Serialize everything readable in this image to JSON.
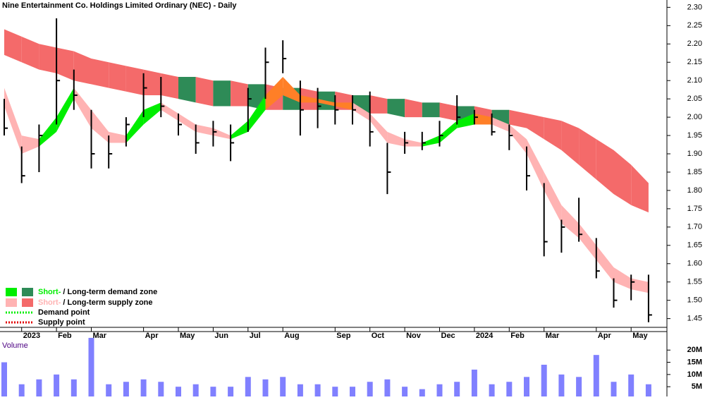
{
  "chart_data": {
    "type": "stock",
    "title": "Nine Entertainment Co. Holdings Limited Ordinary (NEC) - Daily",
    "categories": [
      null,
      "2023",
      null,
      "Feb",
      null,
      "Mar",
      null,
      null,
      "Apr",
      null,
      "May",
      null,
      "Jun",
      null,
      "Jul",
      null,
      "Aug",
      null,
      null,
      "Sep",
      null,
      "Oct",
      null,
      "Nov",
      null,
      "Dec",
      null,
      "2024",
      null,
      "Feb",
      null,
      "Mar",
      null,
      null,
      "Apr",
      null,
      "May",
      null
    ],
    "high": [
      2.05,
      1.92,
      1.98,
      2.27,
      2.13,
      2.02,
      1.95,
      2.0,
      2.12,
      2.11,
      2.01,
      1.98,
      1.99,
      1.98,
      2.08,
      2.19,
      2.21,
      2.1,
      2.08,
      2.06,
      2.06,
      2.07,
      1.93,
      1.96,
      1.96,
      1.99,
      2.06,
      2.02,
      2.01,
      1.98,
      1.92,
      1.82,
      1.72,
      1.78,
      1.67,
      1.56,
      1.57,
      1.57
    ],
    "low": [
      1.95,
      1.82,
      1.85,
      1.98,
      2.02,
      1.86,
      1.86,
      1.92,
      2.0,
      2.0,
      1.95,
      1.9,
      1.92,
      1.88,
      1.96,
      2.05,
      2.12,
      1.95,
      1.97,
      1.98,
      1.98,
      1.92,
      1.79,
      1.9,
      1.91,
      1.92,
      1.98,
      1.98,
      1.95,
      1.91,
      1.8,
      1.62,
      1.63,
      1.66,
      1.56,
      1.48,
      1.5,
      1.44
    ],
    "close": [
      1.97,
      1.84,
      1.95,
      2.1,
      2.06,
      1.9,
      1.9,
      1.98,
      2.08,
      2.03,
      1.98,
      1.93,
      1.96,
      1.93,
      2.05,
      2.15,
      2.16,
      2.02,
      2.03,
      2.02,
      2.02,
      1.96,
      1.85,
      1.93,
      1.93,
      1.95,
      2.0,
      2.0,
      1.96,
      1.95,
      1.84,
      1.66,
      1.7,
      1.68,
      1.58,
      1.5,
      1.55,
      1.46
    ],
    "short_upper": [
      2.08,
      1.95,
      1.94,
      2.0,
      2.08,
      2.02,
      1.96,
      1.95,
      2.02,
      2.04,
      2.01,
      1.98,
      1.97,
      1.95,
      1.99,
      2.06,
      2.11,
      2.06,
      2.05,
      2.04,
      2.04,
      2.01,
      1.96,
      1.94,
      1.93,
      1.95,
      1.99,
      2.01,
      2.0,
      1.98,
      1.94,
      1.85,
      1.76,
      1.71,
      1.65,
      1.59,
      1.56,
      1.55
    ],
    "short_lower": [
      2.03,
      1.9,
      1.92,
      1.96,
      2.05,
      1.97,
      1.93,
      1.93,
      1.98,
      2.02,
      1.99,
      1.96,
      1.95,
      1.94,
      1.96,
      2.02,
      2.06,
      2.04,
      2.04,
      2.03,
      2.02,
      1.99,
      1.93,
      1.92,
      1.92,
      1.93,
      1.97,
      1.98,
      1.98,
      1.96,
      1.9,
      1.8,
      1.71,
      1.67,
      1.61,
      1.55,
      1.53,
      1.52
    ],
    "long_upper": [
      2.24,
      2.22,
      2.2,
      2.19,
      2.18,
      2.16,
      2.15,
      2.14,
      2.13,
      2.12,
      2.11,
      2.11,
      2.1,
      2.1,
      2.09,
      2.09,
      2.08,
      2.08,
      2.07,
      2.07,
      2.06,
      2.06,
      2.05,
      2.05,
      2.04,
      2.04,
      2.03,
      2.03,
      2.02,
      2.02,
      2.01,
      2.0,
      1.99,
      1.97,
      1.94,
      1.91,
      1.87,
      1.82
    ],
    "long_lower": [
      2.17,
      2.15,
      2.13,
      2.12,
      2.1,
      2.09,
      2.08,
      2.07,
      2.06,
      2.06,
      2.05,
      2.04,
      2.03,
      2.03,
      2.03,
      2.02,
      2.02,
      2.02,
      2.02,
      2.02,
      2.02,
      2.01,
      2.01,
      2.0,
      2.0,
      2.0,
      1.99,
      1.99,
      1.99,
      1.98,
      1.97,
      1.94,
      1.91,
      1.87,
      1.83,
      1.79,
      1.76,
      1.74
    ],
    "volume": [
      15,
      6,
      8,
      10,
      8,
      25,
      6,
      7,
      8,
      7,
      5,
      6,
      5,
      5,
      9,
      8,
      9,
      6,
      6,
      5,
      5,
      7,
      8,
      5,
      4,
      6,
      7,
      12,
      6,
      7,
      9,
      14,
      10,
      9,
      18,
      7,
      10,
      6
    ],
    "volume_label": "Volume",
    "ylim": [
      1.43,
      2.32
    ],
    "yticks": [
      {
        "value": 1.45,
        "label": "1.45"
      },
      {
        "value": 1.5,
        "label": "1.50"
      },
      {
        "value": 1.55,
        "label": "1.55"
      },
      {
        "value": 1.6,
        "label": "1.60"
      },
      {
        "value": 1.65,
        "label": "1.65"
      },
      {
        "value": 1.7,
        "label": "1.70"
      },
      {
        "value": 1.75,
        "label": "1.75"
      },
      {
        "value": 1.8,
        "label": "1.80"
      },
      {
        "value": 1.85,
        "label": "1.85"
      },
      {
        "value": 1.9,
        "label": "1.90"
      },
      {
        "value": 1.95,
        "label": "1.95"
      },
      {
        "value": 2.0,
        "label": "2.00"
      },
      {
        "value": 2.05,
        "label": "2.05"
      },
      {
        "value": 2.1,
        "label": "2.10"
      },
      {
        "value": 2.15,
        "label": "2.15"
      },
      {
        "value": 2.2,
        "label": "2.20"
      },
      {
        "value": 2.25,
        "label": "2.25"
      },
      {
        "value": 2.3,
        "label": "2.30"
      }
    ],
    "volume_ylim": [
      1,
      27
    ],
    "volume_ticks": [
      {
        "value": 5,
        "label": "5M"
      },
      {
        "value": 10,
        "label": "10M"
      },
      {
        "value": 15,
        "label": "15M"
      },
      {
        "value": 20,
        "label": "20M"
      }
    ],
    "colors": {
      "candle": "#000000",
      "short_demand": "#00ee00",
      "short_supply": "#ffb3b3",
      "long_demand": "#2e8b57",
      "long_supply": "#f46a6a",
      "overlap": "#ff7f27",
      "volume": "#8080ff"
    },
    "legend": [
      {
        "short": "Short-",
        "long": "/ Long-term demand zone"
      },
      {
        "short": "Short-",
        "long": "/ Long-term supply zone"
      },
      {
        "label": "Demand point"
      },
      {
        "label": "Supply point"
      }
    ]
  }
}
